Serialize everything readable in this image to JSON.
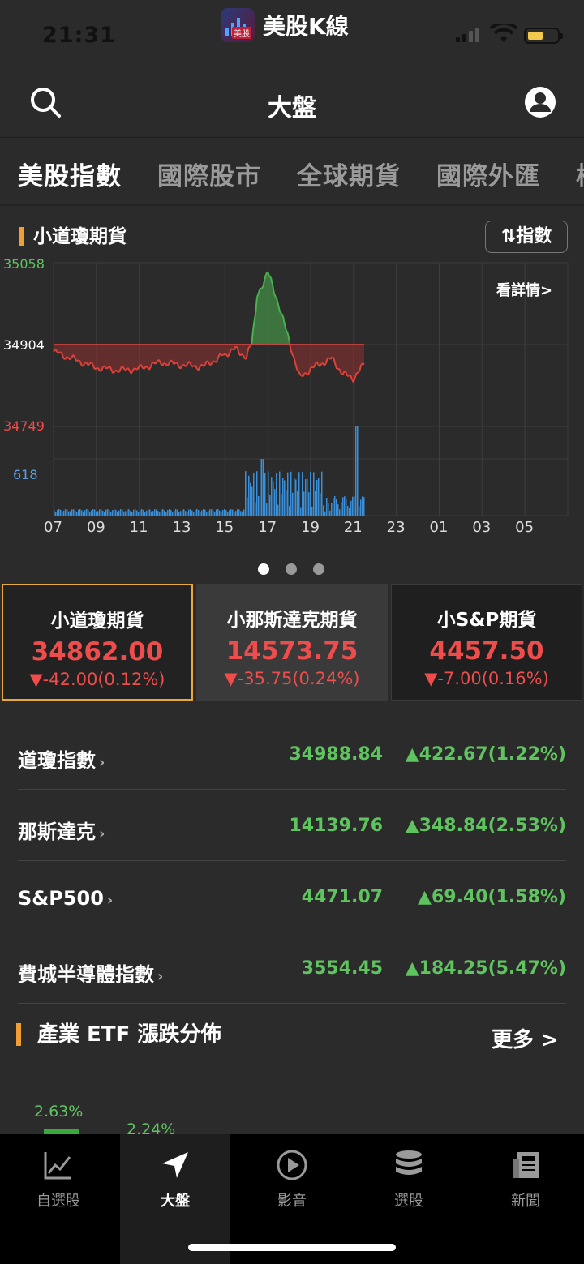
{
  "status": {
    "time": "21:31",
    "app_name": "美股K線",
    "app_tag": "美股"
  },
  "header": {
    "title": "大盤"
  },
  "tabs": [
    "美股指數",
    "國際股市",
    "全球期貨",
    "國際外匯",
    "様"
  ],
  "chart": {
    "title": "小道瓊期貨",
    "switch_label": "⇅指數",
    "detail_label": "看詳情>",
    "y_high": "35058",
    "y_ref": "34904",
    "y_low": "34749",
    "vol_max": "618",
    "x_ticks": [
      "07",
      "09",
      "11",
      "13",
      "15",
      "17",
      "19",
      "21",
      "23",
      "01",
      "03",
      "05"
    ],
    "colors": {
      "up": "#4caf50",
      "down": "#e0413a",
      "volume": "#3a8fd8"
    }
  },
  "chart_data": {
    "type": "line",
    "x": [
      "07:00",
      "08:00",
      "09:00",
      "10:00",
      "11:00",
      "12:00",
      "13:00",
      "14:00",
      "15:00",
      "15:30",
      "16:00",
      "16:15",
      "16:30",
      "17:00",
      "17:30",
      "18:00",
      "18:30",
      "19:00",
      "19:30",
      "20:00",
      "20:30",
      "21:00",
      "21:30"
    ],
    "series": [
      {
        "values": [
          34890,
          34875,
          34860,
          34855,
          34858,
          34870,
          34865,
          34862,
          34885,
          34895,
          34880,
          34905,
          34995,
          35040,
          34980,
          34910,
          34840,
          34858,
          34868,
          34877,
          34848,
          34840,
          34866
        ]
      }
    ],
    "reference": 34904,
    "ylim": [
      34749,
      35058
    ],
    "volume_max": 618
  },
  "futures": [
    {
      "name": "小道瓊期貨",
      "price": "34862.00",
      "change": "▼-42.00(0.12%)"
    },
    {
      "name": "小那斯達克期貨",
      "price": "14573.75",
      "change": "▼-35.75(0.24%)"
    },
    {
      "name": "小S&P期貨",
      "price": "4457.50",
      "change": "▼-7.00(0.16%)"
    }
  ],
  "indices": [
    {
      "name": "道瓊指數",
      "value": "34988.84",
      "change": "▲422.67(1.22%)"
    },
    {
      "name": "那斯達克",
      "value": "14139.76",
      "change": "▲348.84(2.53%)"
    },
    {
      "name": "S&P500",
      "value": "4471.07",
      "change": "▲69.40(1.58%)"
    },
    {
      "name": "費城半導體指數",
      "value": "3554.45",
      "change": "▲184.25(5.47%)"
    }
  ],
  "etf": {
    "title": "產業 ETF 漲跌分佈",
    "more": "更多 >",
    "v1": "2.63%",
    "v2": "2.24%"
  },
  "nav": [
    {
      "label": "自選股",
      "icon": "chart-line-icon"
    },
    {
      "label": "大盤",
      "icon": "navigation-arrow-icon"
    },
    {
      "label": "影音",
      "icon": "play-circle-icon"
    },
    {
      "label": "選股",
      "icon": "database-stack-icon"
    },
    {
      "label": "新聞",
      "icon": "newspaper-icon"
    }
  ]
}
